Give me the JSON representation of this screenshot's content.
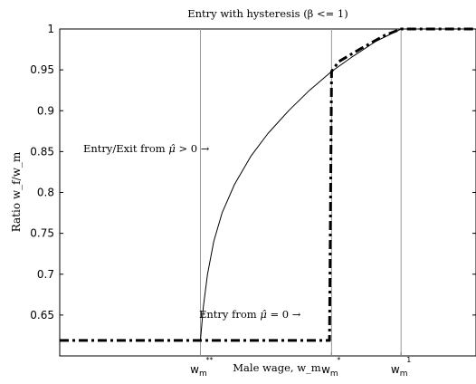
{
  "chart_data": {
    "type": "line",
    "title": "Entry with hysteresis (β <= 1)",
    "xlabel": "Male wage, w_m",
    "ylabel": "Ratio w_f/w_m",
    "xlim": [
      0,
      1
    ],
    "ylim": [
      0.6,
      1
    ],
    "yticks": [
      0.65,
      0.7,
      0.75,
      0.8,
      0.85,
      0.9,
      0.95,
      1
    ],
    "ytick_labels": [
      "0.65",
      "0.7",
      "0.75",
      "0.8",
      "0.85",
      "0.9",
      "0.95",
      "1"
    ],
    "xticks": [
      {
        "x": 0.338,
        "base": "w",
        "sub": "m",
        "sup": "**"
      },
      {
        "x": 0.653,
        "base": "w",
        "sub": "m",
        "sup": "*"
      },
      {
        "x": 0.82,
        "base": "w",
        "sub": "m",
        "sup": "1"
      }
    ],
    "vlines": [
      0.338,
      0.653,
      0.82
    ],
    "series": [
      {
        "style": "solid",
        "points": [
          [
            0.338,
            0.619
          ],
          [
            0.345,
            0.66
          ],
          [
            0.355,
            0.7
          ],
          [
            0.37,
            0.74
          ],
          [
            0.39,
            0.775
          ],
          [
            0.42,
            0.81
          ],
          [
            0.46,
            0.845
          ],
          [
            0.5,
            0.872
          ],
          [
            0.55,
            0.9
          ],
          [
            0.6,
            0.925
          ],
          [
            0.653,
            0.948
          ],
          [
            0.7,
            0.965
          ],
          [
            0.76,
            0.985
          ],
          [
            0.82,
            1.0
          ],
          [
            1.0,
            1.0
          ]
        ]
      },
      {
        "style": "dash-dot",
        "points": [
          [
            0.0,
            0.619
          ],
          [
            0.648,
            0.619
          ],
          [
            0.653,
            0.948
          ],
          [
            0.67,
            0.96
          ],
          [
            0.72,
            0.975
          ],
          [
            0.78,
            0.992
          ],
          [
            0.82,
            1.0
          ],
          [
            1.0,
            1.0
          ]
        ]
      }
    ],
    "annotations": {
      "exit_prefix": "Entry/Exit from ",
      "exit_var": "μ̂",
      "exit_suffix": " > 0 →",
      "entry_prefix": "Entry from ",
      "entry_var": "μ̂",
      "entry_suffix": " = 0 →"
    }
  }
}
